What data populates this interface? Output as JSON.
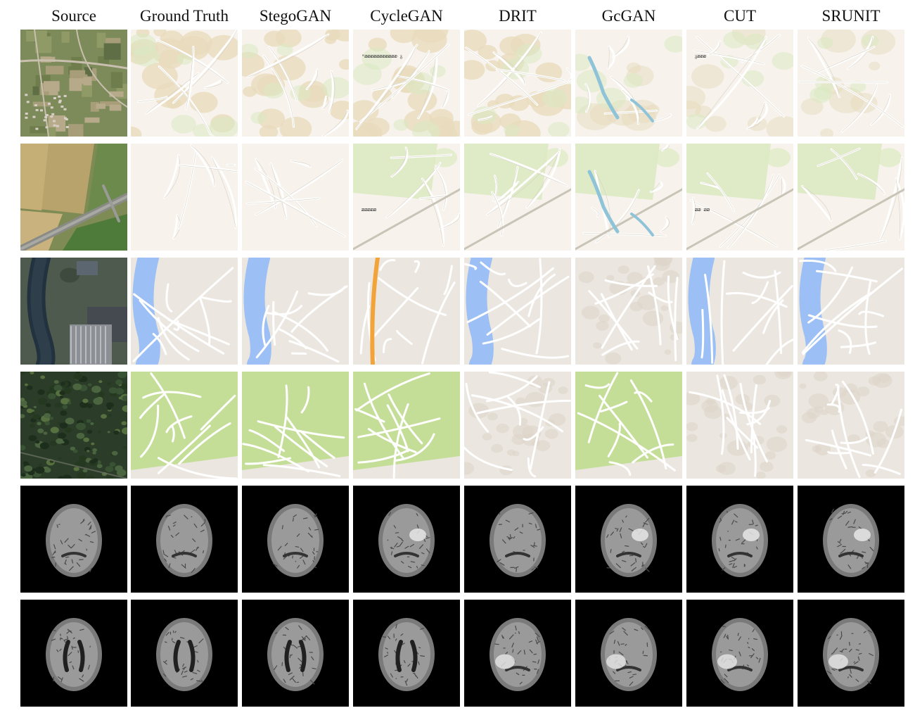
{
  "figure": {
    "columns": [
      "Source",
      "Ground Truth",
      "StegoGAN",
      "CycleGAN",
      "DRIT",
      "GcGAN",
      "CUT",
      "SRUNIT"
    ],
    "rows": [
      {
        "kind": "aerial-village",
        "artifact_text": {
          "CycleGAN": "ᵚᴔᴔᴔᴔᴔᴔᴔᴔᴔᴔᴔ ᵹ",
          "CUT": "ᵹᴔᴔᴔ"
        }
      },
      {
        "kind": "aerial-fields",
        "artifact_text": {
          "CycleGAN": "ᴔᴔᴔᴔᴔ",
          "CUT": "ᴔᴔ ᴔᴔ"
        }
      },
      {
        "kind": "aerial-river-factory"
      },
      {
        "kind": "aerial-forest"
      },
      {
        "kind": "brain-mri"
      },
      {
        "kind": "brain-mri-ventricles"
      }
    ]
  },
  "colors": {
    "map_bg": "#f7f3ec",
    "map_green": "#dbe9c2",
    "map_tan": "#e8dbbd",
    "map_water": "#a8d4e6",
    "gmap_bg": "#ebe7e0",
    "gmap_water": "#9cc0f5",
    "gmap_green": "#c4de98",
    "gmap_highway": "#f2a33a",
    "mri_bg": "#000000"
  }
}
